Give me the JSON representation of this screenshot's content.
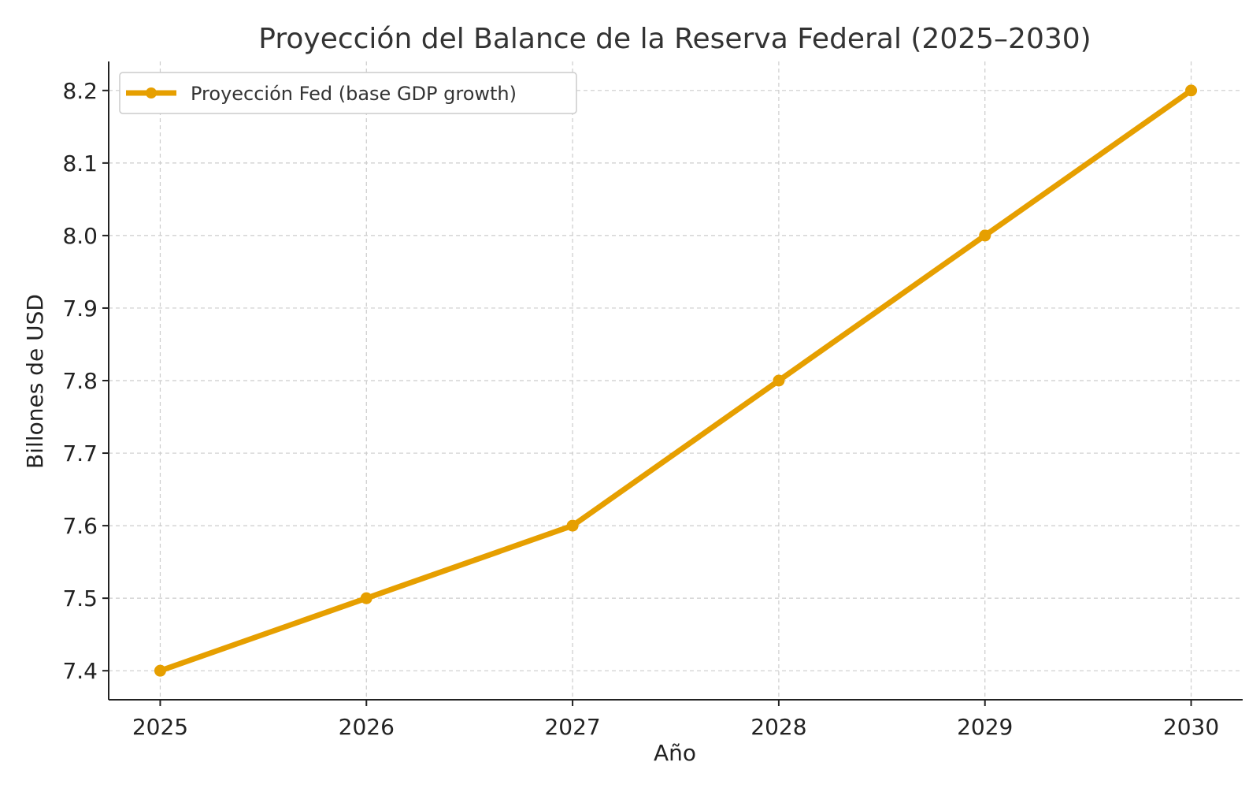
{
  "chart_data": {
    "type": "line",
    "title": "Proyección del Balance de la Reserva Federal (2025–2030)",
    "xlabel": "Año",
    "ylabel": "Billones de USD",
    "x": [
      2025,
      2026,
      2027,
      2028,
      2029,
      2030
    ],
    "series": [
      {
        "name": "Proyección Fed (base GDP growth)",
        "values": [
          7.4,
          7.5,
          7.6,
          7.8,
          8.0,
          8.2
        ],
        "color": "#E69F00",
        "marker": "circle"
      }
    ],
    "xlim": [
      2024.75,
      2030.25
    ],
    "ylim": [
      7.36,
      8.24
    ],
    "xticks": [
      "2025",
      "2026",
      "2027",
      "2028",
      "2029",
      "2030"
    ],
    "yticks": [
      "7.4",
      "7.5",
      "7.6",
      "7.7",
      "7.8",
      "7.9",
      "8.0",
      "8.1",
      "8.2"
    ],
    "grid": true,
    "legend_position": "top-left"
  }
}
